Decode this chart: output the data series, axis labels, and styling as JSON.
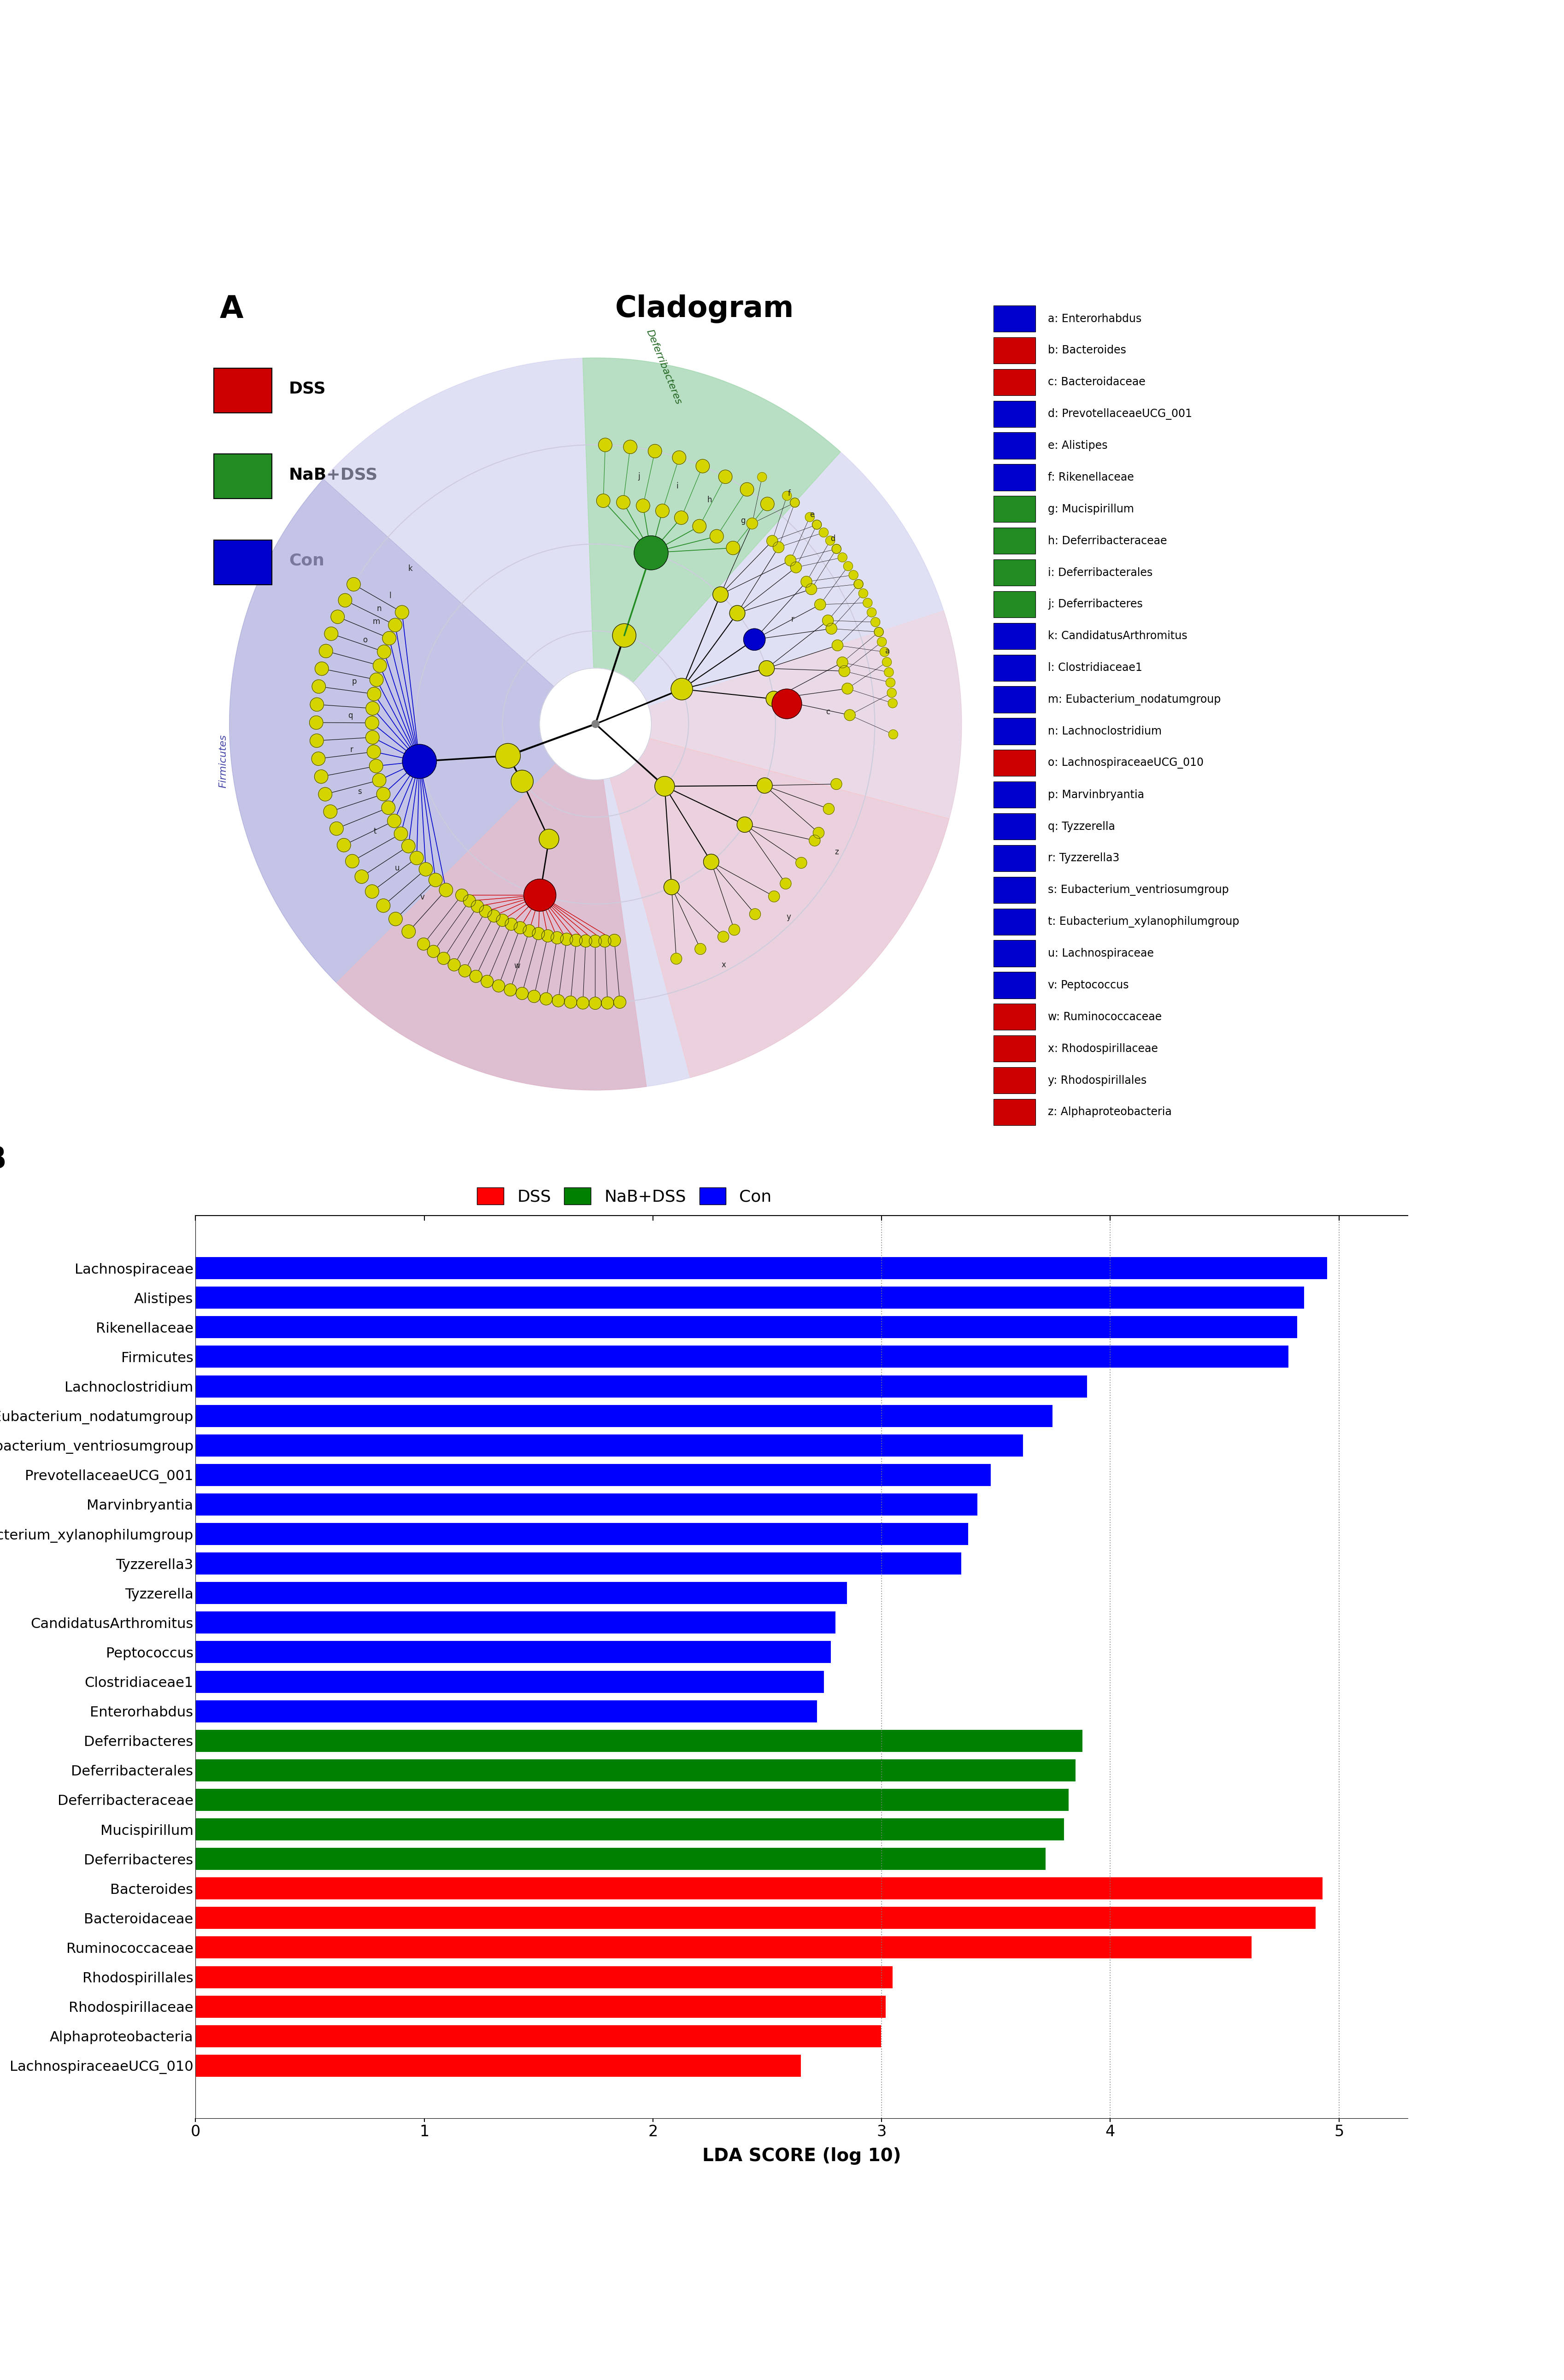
{
  "panel_b": {
    "categories": [
      "Lachnospiraceae",
      "Alistipes",
      "Rikenellaceae",
      "Firmicutes",
      "Lachnoclostridium",
      "Eubacterium_nodatumgroup",
      "Eubacterium_ventriosumgroup",
      "PrevotellaceaeUCG_001",
      "Marvinbryantia",
      "Eubacterium_xylanophilumgroup",
      "Tyzzerella3",
      "Tyzzerella",
      "CandidatusArthromitus",
      "Peptococcus",
      "Clostridiaceae1",
      "Enterorhabdus",
      "Deferribacteres",
      "Deferribacterales",
      "Deferribacteraceae",
      "Mucispirillum",
      "Deferribacteres",
      "Bacteroides",
      "Bacteroidaceae",
      "Ruminococcaceae",
      "Rhodospirillales",
      "Rhodospirillaceae",
      "Alphaproteobacteria",
      "LachnospiraceaeUCG_010"
    ],
    "values": [
      4.95,
      4.85,
      4.82,
      4.78,
      3.9,
      3.75,
      3.62,
      3.48,
      3.42,
      3.38,
      3.35,
      2.85,
      2.8,
      2.78,
      2.75,
      2.72,
      3.88,
      3.85,
      3.82,
      3.8,
      3.72,
      4.93,
      4.9,
      4.62,
      3.05,
      3.02,
      3.0,
      2.65
    ],
    "colors": [
      "#0000FF",
      "#0000FF",
      "#0000FF",
      "#0000FF",
      "#0000FF",
      "#0000FF",
      "#0000FF",
      "#0000FF",
      "#0000FF",
      "#0000FF",
      "#0000FF",
      "#0000FF",
      "#0000FF",
      "#0000FF",
      "#0000FF",
      "#0000FF",
      "#008000",
      "#008000",
      "#008000",
      "#008000",
      "#008000",
      "#FF0000",
      "#FF0000",
      "#FF0000",
      "#FF0000",
      "#FF0000",
      "#FF0000",
      "#FF0000"
    ],
    "xlabel": "LDA SCORE (log 10)",
    "xlim": [
      0,
      5.3
    ],
    "xticks": [
      0,
      1,
      2,
      3,
      4,
      5
    ],
    "dotted_lines": [
      3,
      4,
      5
    ]
  },
  "panel_a_legend": [
    {
      "label": "a: Enterorhabdus",
      "color": "#0000CD"
    },
    {
      "label": "b: Bacteroides",
      "color": "#CC0000"
    },
    {
      "label": "c: Bacteroidaceae",
      "color": "#CC0000"
    },
    {
      "label": "d: PrevotellaceaeUCG_001",
      "color": "#0000CD"
    },
    {
      "label": "e: Alistipes",
      "color": "#0000CD"
    },
    {
      "label": "f: Rikenellaceae",
      "color": "#0000CD"
    },
    {
      "label": "g: Mucispirillum",
      "color": "#228B22"
    },
    {
      "label": "h: Deferribacteraceae",
      "color": "#228B22"
    },
    {
      "label": "i: Deferribacterales",
      "color": "#228B22"
    },
    {
      "label": "j: Deferribacteres",
      "color": "#228B22"
    },
    {
      "label": "k: CandidatusArthromitus",
      "color": "#0000CD"
    },
    {
      "label": "l: Clostridiaceae1",
      "color": "#0000CD"
    },
    {
      "label": "m: Eubacterium_nodatumgroup",
      "color": "#0000CD"
    },
    {
      "label": "n: Lachnoclostridium",
      "color": "#0000CD"
    },
    {
      "label": "o: LachnospiraceaeUCG_010",
      "color": "#CC0000"
    },
    {
      "label": "p: Marvinbryantia",
      "color": "#0000CD"
    },
    {
      "label": "q: Tyzzerella",
      "color": "#0000CD"
    },
    {
      "label": "r: Tyzzerella3",
      "color": "#0000CD"
    },
    {
      "label": "s: Eubacterium_ventriosumgroup",
      "color": "#0000CD"
    },
    {
      "label": "t: Eubacterium_xylanophilumgroup",
      "color": "#0000CD"
    },
    {
      "label": "u: Lachnospiraceae",
      "color": "#0000CD"
    },
    {
      "label": "v: Peptococcus",
      "color": "#0000CD"
    },
    {
      "label": "w: Ruminococcaceae",
      "color": "#CC0000"
    },
    {
      "label": "x: Rhodospirillaceae",
      "color": "#CC0000"
    },
    {
      "label": "y: Rhodospirillales",
      "color": "#CC0000"
    },
    {
      "label": "z: Alphaproteobacteria",
      "color": "#CC0000"
    }
  ],
  "bg_color": "#FFFFFF",
  "cladogram_bg": "#C8C8EE",
  "blue": "#0000CD",
  "green": "#228B22",
  "red": "#CC0000",
  "yellow": "#D4D400"
}
